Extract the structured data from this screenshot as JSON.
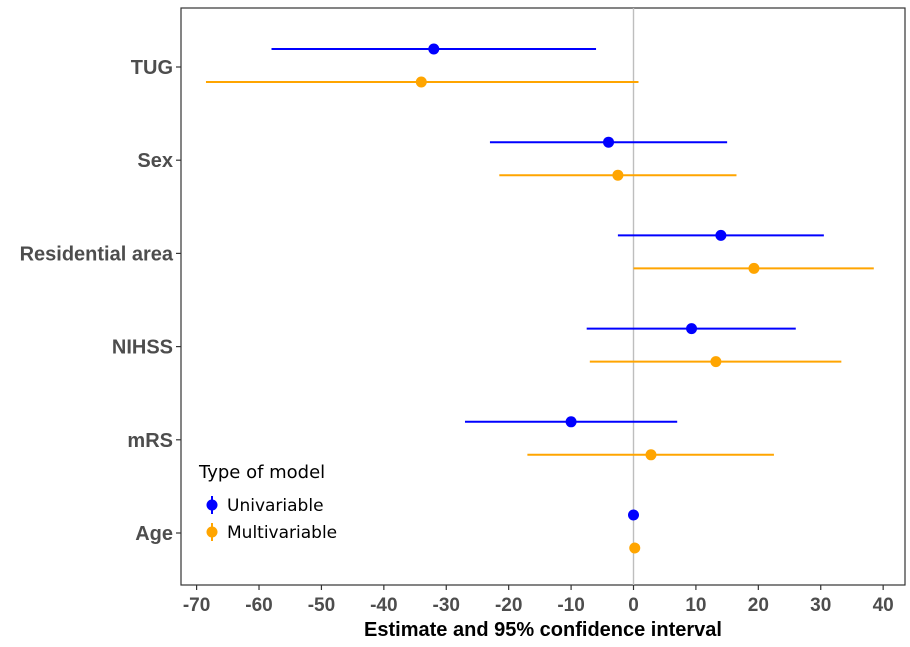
{
  "chart_data": {
    "type": "scatter",
    "subtype": "forest-plot",
    "categories": [
      "TUG",
      "Sex",
      "Residential area",
      "NIHSS",
      "mRS",
      "Age"
    ],
    "series": [
      {
        "name": "Univariable",
        "color": "#0000ff",
        "estimates": [
          -32,
          -4,
          14,
          9.3,
          -10,
          0
        ],
        "lower": [
          -58,
          -23,
          -2.5,
          -7.5,
          -27,
          0
        ],
        "upper": [
          -6,
          15,
          30.5,
          26,
          7,
          0
        ]
      },
      {
        "name": "Multivariable",
        "color": "#ffa500",
        "estimates": [
          -34,
          -2.5,
          19.3,
          13.2,
          2.8,
          0.2
        ],
        "lower": [
          -68.5,
          -21.5,
          0,
          -7,
          -17,
          0.2
        ],
        "upper": [
          0.8,
          16.5,
          38.5,
          33.3,
          22.5,
          0.2
        ]
      }
    ],
    "xlabel": "Estimate and 95% confidence interval",
    "xlim": [
      -72.5,
      43.5
    ],
    "xticks": [
      -70,
      -60,
      -50,
      -40,
      -30,
      -20,
      -10,
      0,
      10,
      20,
      30,
      40
    ],
    "xtick_labels": [
      "-70",
      "-60",
      "-50",
      "-40",
      "-30",
      "-20",
      "-10",
      "0",
      "10",
      "20",
      "30",
      "40"
    ],
    "reference_line": 0,
    "reference_line_color": "#bebebe",
    "grid": false,
    "legend": {
      "title": "Type of model",
      "placement": "bottom-left",
      "entries": [
        "Univariable",
        "Multivariable"
      ]
    }
  }
}
